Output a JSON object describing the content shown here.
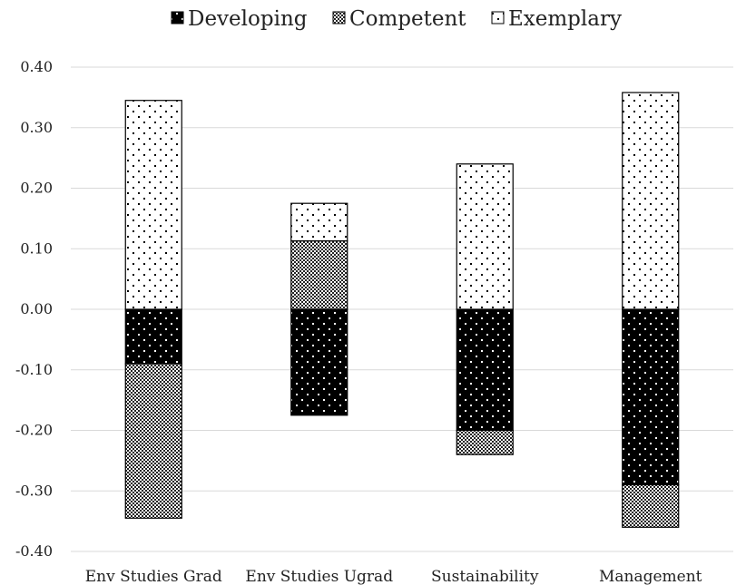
{
  "chart_data": {
    "type": "bar",
    "stacked": "diverging",
    "categories": [
      "Env Studies Grad",
      "Env Studies Ugrad",
      "Sustainability",
      "Management"
    ],
    "series": [
      {
        "name": "Developing",
        "pattern": "black-with-white-dots",
        "values": [
          -0.09,
          -0.175,
          -0.2,
          -0.29
        ]
      },
      {
        "name": "Competent",
        "pattern": "checkered",
        "values": [
          -0.255,
          0.113,
          -0.04,
          -0.07
        ]
      },
      {
        "name": "Exemplary",
        "pattern": "white-with-black-dots",
        "values": [
          0.345,
          0.062,
          0.24,
          0.358
        ]
      }
    ],
    "ylim": [
      -0.4,
      0.4
    ],
    "yticks": [
      "0.40",
      "0.30",
      "0.20",
      "0.10",
      "0.00",
      "-0.10",
      "-0.20",
      "-0.30",
      "-0.40"
    ],
    "xlabel": "",
    "ylabel": "",
    "grid": true,
    "legend_position": "top"
  }
}
